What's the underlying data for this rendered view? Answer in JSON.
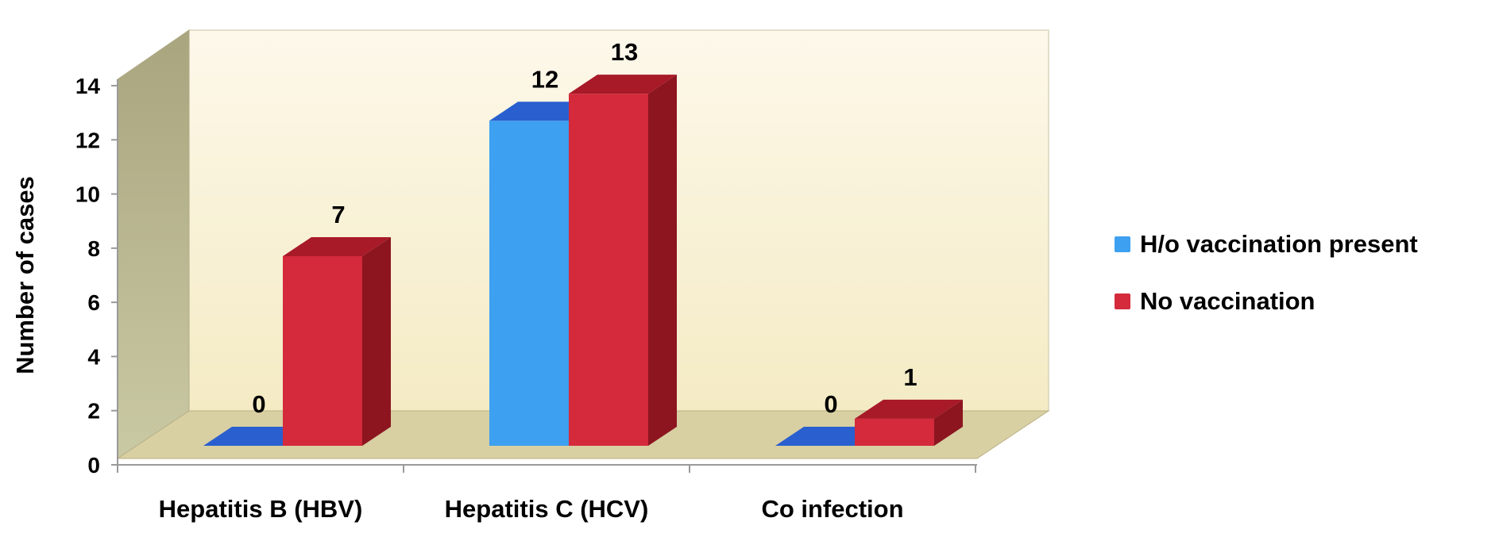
{
  "chart_data": {
    "type": "bar",
    "style": "3d-clustered-column",
    "categories": [
      "Hepatitis B (HBV)",
      "Hepatitis C (HCV)",
      "Co infection"
    ],
    "series": [
      {
        "name": "H/o vaccination present",
        "values": [
          0,
          12,
          0
        ],
        "color": "#3da0f0",
        "top_color": "#2a5fcf",
        "side_color": "#2a6fc0"
      },
      {
        "name": "No vaccination",
        "values": [
          7,
          13,
          1
        ],
        "color": "#d42a3c",
        "top_color": "#a81a28",
        "side_color": "#8c1520"
      }
    ],
    "ylabel": "Number of cases",
    "xlabel": "",
    "ylim": [
      0,
      14
    ],
    "yticks": [
      0,
      2,
      4,
      6,
      8,
      10,
      12,
      14
    ],
    "data_labels": true,
    "legend_position": "right",
    "backwall_color": "#f7efd2",
    "sidewall_color": "#b9b99a",
    "floor_color": "#d8cfa0"
  }
}
